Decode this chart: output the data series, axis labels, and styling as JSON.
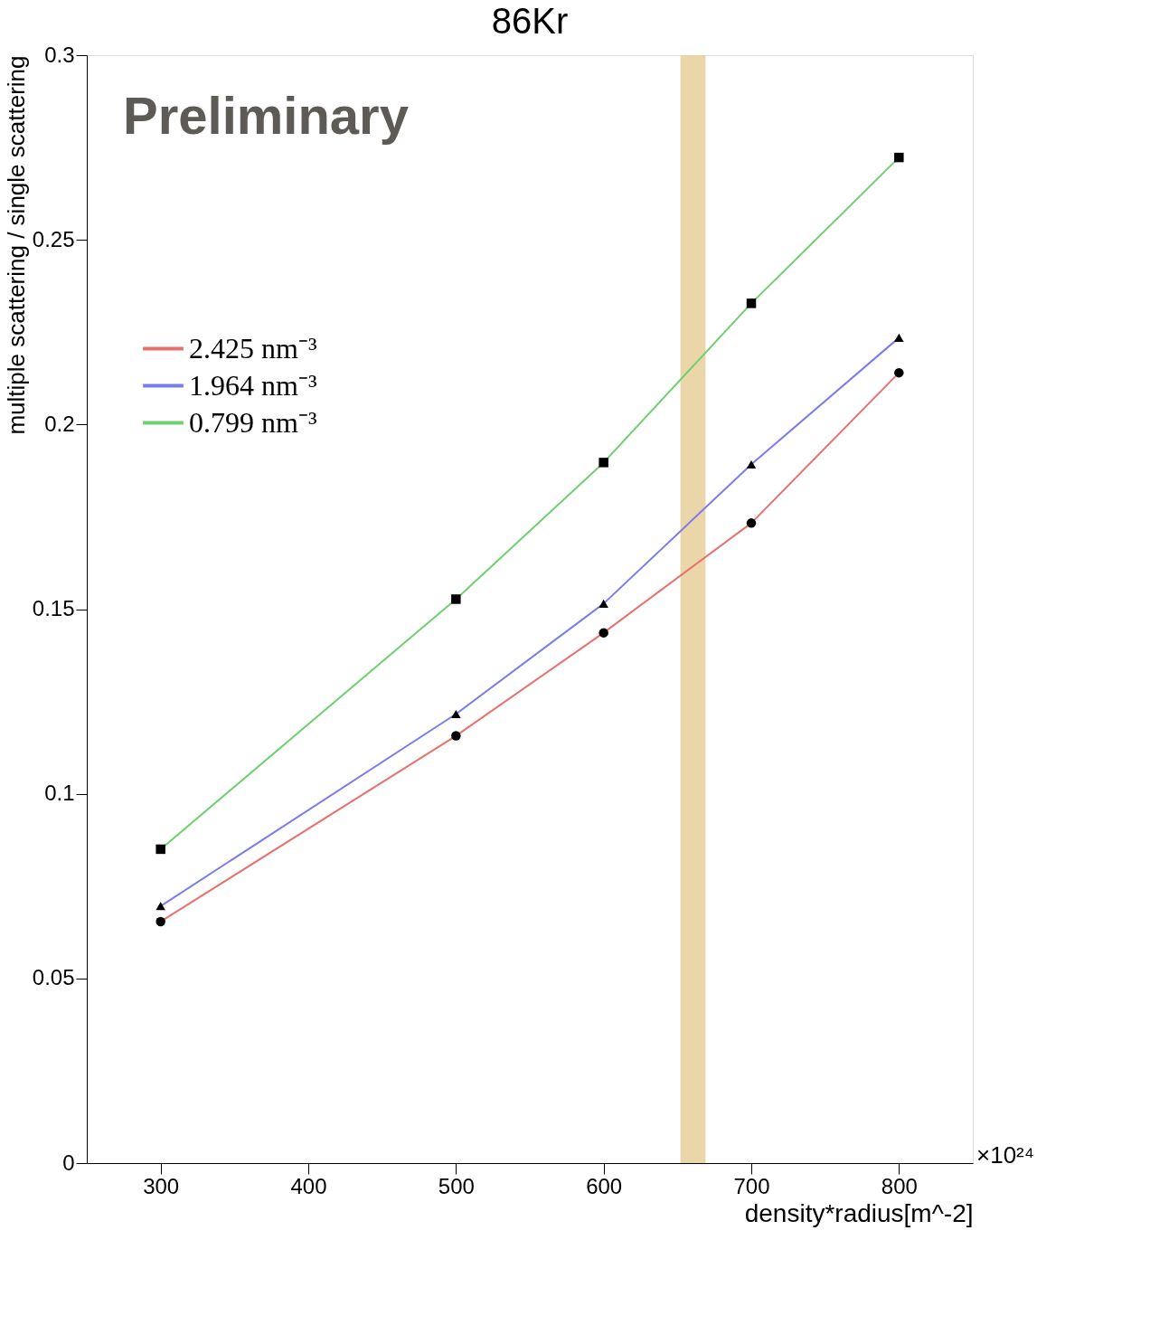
{
  "chart_data": {
    "type": "line",
    "title": "86Kr",
    "xlabel": "density*radius[m^-2]",
    "ylabel": "multiple scattering / single scattering",
    "x": [
      300,
      500,
      600,
      700,
      800
    ],
    "series": [
      {
        "name": "2.425 nm⁻³",
        "color": "#e8706f",
        "marker": "circle",
        "values": [
          0.0654,
          0.1157,
          0.1436,
          0.1733,
          0.214
        ]
      },
      {
        "name": "1.964 nm⁻³",
        "color": "#7b7bf0",
        "marker": "triangle",
        "values": [
          0.0696,
          0.1216,
          0.1515,
          0.1892,
          0.2235
        ]
      },
      {
        "name": "0.799 nm⁻³",
        "color": "#6fd06f",
        "marker": "square",
        "values": [
          0.085,
          0.1527,
          0.1897,
          0.2328,
          0.2723
        ]
      }
    ],
    "xlim": [
      250,
      850
    ],
    "xticks": [
      300,
      400,
      500,
      600,
      700,
      800
    ],
    "ylim": [
      0,
      0.3
    ],
    "yticks": [
      0,
      0.05,
      0.1,
      0.15,
      0.2,
      0.25,
      0.3
    ],
    "bands": [
      {
        "axis": "x",
        "from": 652,
        "to": 669,
        "color": "#e6cf9a"
      }
    ],
    "annotations": [
      "Preliminary",
      "×10²⁴"
    ],
    "grid": false,
    "legend": "top left",
    "line_style": "solid"
  }
}
